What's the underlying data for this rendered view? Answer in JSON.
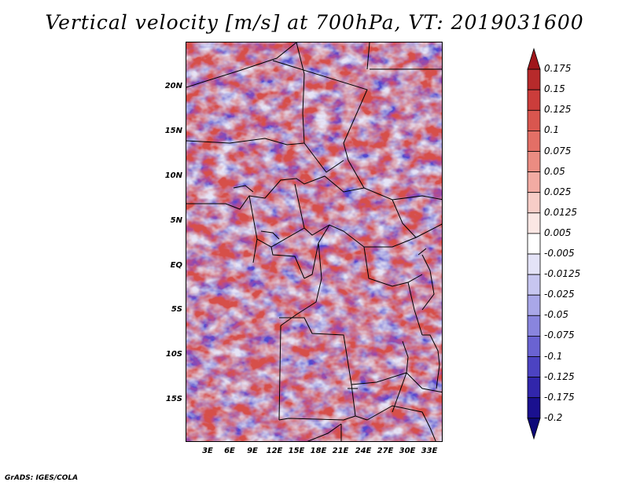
{
  "title": "Vertical velocity [m/s] at 700hPa, VT: 2019031600",
  "credit": "GrADS: IGES/COLA",
  "map": {
    "variable": "Vertical velocity",
    "units": "m/s",
    "level": "700hPa",
    "valid_time": "2019031600",
    "lat_labels": [
      "20N",
      "15N",
      "10N",
      "5N",
      "EQ",
      "5S",
      "10S",
      "15S"
    ],
    "lon_labels": [
      "3E",
      "6E",
      "9E",
      "12E",
      "15E",
      "18E",
      "21E",
      "24E",
      "27E",
      "30E",
      "33E"
    ]
  },
  "colorbar": {
    "levels": [
      "0.175",
      "0.15",
      "0.125",
      "0.1",
      "0.075",
      "0.05",
      "0.025",
      "0.0125",
      "0.005",
      "-0.005",
      "-0.0125",
      "-0.025",
      "-0.05",
      "-0.075",
      "-0.1",
      "-0.125",
      "-0.175",
      "-0.2"
    ],
    "colors": [
      "#a0161b",
      "#b72a2b",
      "#cb3d3b",
      "#d9564f",
      "#e36f66",
      "#eb8c82",
      "#f2aba3",
      "#f7cdc7",
      "#fbe7e4",
      "#ffffff",
      "#e4e3f7",
      "#c7c6f0",
      "#a9a7e8",
      "#8985de",
      "#6a63d2",
      "#4c43c2",
      "#3126ab",
      "#1a108f",
      "#0d0878"
    ]
  }
}
